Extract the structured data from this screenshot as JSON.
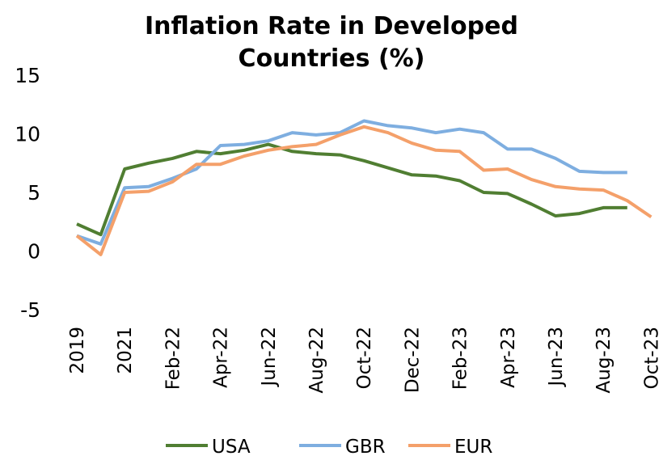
{
  "chart_data": {
    "type": "line",
    "title": [
      "Inflation Rate in Developed",
      "Countries (%)"
    ],
    "categories": [
      "2019",
      null,
      "2021",
      null,
      "Feb-22",
      null,
      "Apr-22",
      null,
      "Jun-22",
      null,
      "Aug-22",
      null,
      "Oct-22",
      null,
      "Dec-22",
      null,
      "Feb-23",
      null,
      "Apr-23",
      null,
      "Jun-23",
      null,
      "Aug-23",
      null,
      "Oct-23"
    ],
    "series": [
      {
        "name": "USA",
        "color": "#507e32",
        "values": [
          2.3,
          1.4,
          7.0,
          7.5,
          7.9,
          8.5,
          8.3,
          8.6,
          9.1,
          8.5,
          8.3,
          8.2,
          7.7,
          7.1,
          6.5,
          6.4,
          6.0,
          5.0,
          4.9,
          4.0,
          3.0,
          3.2,
          3.7,
          3.7,
          null
        ]
      },
      {
        "name": "GBR",
        "color": "#7eaee0",
        "values": [
          1.3,
          0.6,
          5.4,
          5.5,
          6.2,
          7.0,
          9.0,
          9.1,
          9.4,
          10.1,
          9.9,
          10.1,
          11.1,
          10.7,
          10.5,
          10.1,
          10.4,
          10.1,
          8.7,
          8.7,
          7.9,
          6.8,
          6.7,
          6.7,
          null
        ]
      },
      {
        "name": "EUR",
        "color": "#f4a06a",
        "values": [
          1.3,
          -0.3,
          5.0,
          5.1,
          5.9,
          7.4,
          7.4,
          8.1,
          8.6,
          8.9,
          9.1,
          9.9,
          10.6,
          10.1,
          9.2,
          8.6,
          8.5,
          6.9,
          7.0,
          6.1,
          5.5,
          5.3,
          5.2,
          4.3,
          2.9
        ]
      }
    ],
    "ylim": [
      -5,
      15
    ],
    "yticks": [
      -5,
      0,
      5,
      10,
      15
    ],
    "grid": false,
    "legend": "bottom"
  }
}
